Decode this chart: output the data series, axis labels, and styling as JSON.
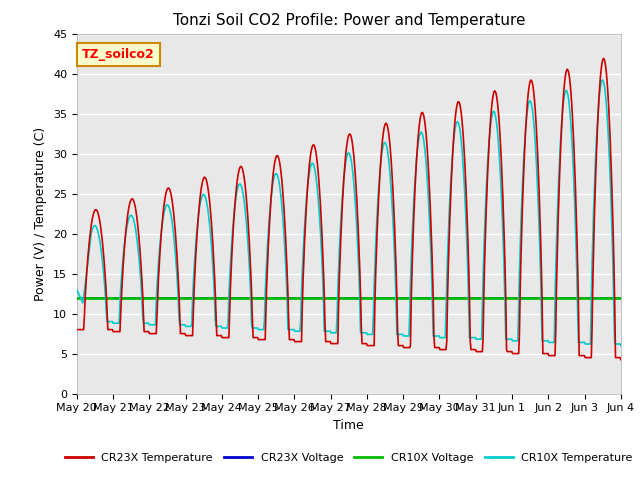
{
  "title": "Tonzi Soil CO2 Profile: Power and Temperature",
  "ylabel": "Power (V) / Temperature (C)",
  "xlabel": "Time",
  "ylim": [
    0,
    45
  ],
  "background_color": "#ffffff",
  "plot_bg_color": "#e8e8e8",
  "grid_color": "#ffffff",
  "annotation_text": "TZ_soilco2",
  "annotation_bg": "#ffffcc",
  "annotation_border": "#cc8800",
  "cr23x_temp_color": "#cc0000",
  "cr23x_volt_color": "#0000cc",
  "cr10x_volt_color": "#00bb00",
  "cr10x_temp_color": "#00cccc",
  "cr10x_volt_value": 12.0,
  "cr23x_volt_value": 12.0,
  "x_tick_labels": [
    "May 20",
    "May 21",
    "May 22",
    "May 23",
    "May 24",
    "May 25",
    "May 26",
    "May 27",
    "May 28",
    "May 29",
    "May 30",
    "May 31",
    "Jun 1",
    "Jun 2",
    "Jun 3",
    "Jun 4"
  ],
  "legend_entries": [
    "CR23X Temperature",
    "CR23X Voltage",
    "CR10X Voltage",
    "CR10X Temperature"
  ],
  "legend_colors": [
    "#cc0000",
    "#0000cc",
    "#00bb00",
    "#00cccc"
  ]
}
